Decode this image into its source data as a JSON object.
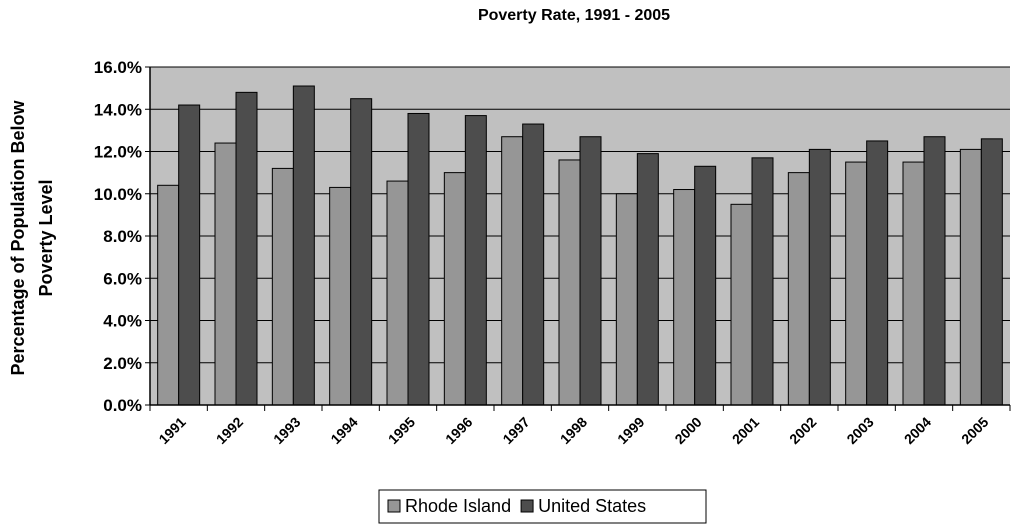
{
  "chart_data": {
    "type": "bar",
    "title": "Poverty Rate, 1991 - 2005",
    "xlabel": "",
    "ylabel_lines": [
      "Percentage of Population Below",
      "Poverty Level"
    ],
    "ylim": [
      0,
      16
    ],
    "yticks": [
      "0.0%",
      "2.0%",
      "4.0%",
      "6.0%",
      "8.0%",
      "10.0%",
      "12.0%",
      "14.0%",
      "16.0%"
    ],
    "categories": [
      "1991",
      "1992",
      "1993",
      "1994",
      "1995",
      "1996",
      "1997",
      "1998",
      "1999",
      "2000",
      "2001",
      "2002",
      "2003",
      "2004",
      "2005"
    ],
    "series": [
      {
        "name": "Rhode Island",
        "color": "#969696",
        "values": [
          10.4,
          12.4,
          11.2,
          10.3,
          10.6,
          11.0,
          12.7,
          11.6,
          10.0,
          10.2,
          9.5,
          11.0,
          11.5,
          11.5,
          12.1
        ]
      },
      {
        "name": "United States",
        "color": "#4d4d4d",
        "values": [
          14.2,
          14.8,
          15.1,
          14.5,
          13.8,
          13.7,
          13.3,
          12.7,
          11.9,
          11.3,
          11.7,
          12.1,
          12.5,
          12.7,
          12.6
        ]
      }
    ],
    "grid": true,
    "plot_background": "#c0c0c0",
    "legend_position": "bottom"
  }
}
